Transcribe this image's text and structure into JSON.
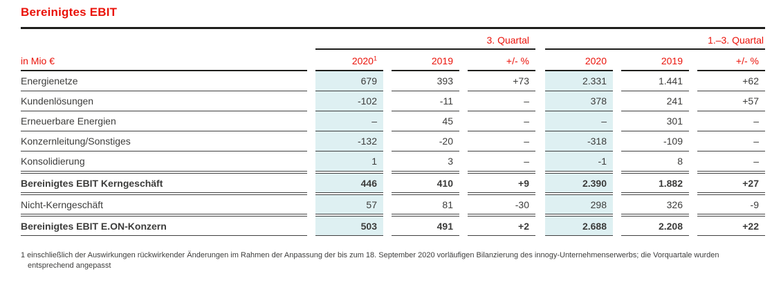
{
  "page": {
    "title": "Bereinigtes EBIT"
  },
  "colors": {
    "accent_red": "#ea1209",
    "highlight_cyan": "#def0f2",
    "rule_dark": "#1d1d1b",
    "rule_thin": "#3f3f3f",
    "text": "#3c3c3b"
  },
  "table": {
    "unit_label": "in Mio €",
    "groups": [
      {
        "label": "3. Quartal"
      },
      {
        "label": "1.–3. Quartal"
      }
    ],
    "columns": [
      {
        "label": "2020",
        "sup": "1"
      },
      {
        "label": "2019"
      },
      {
        "label": "+/- %"
      },
      {
        "label": "2020"
      },
      {
        "label": "2019"
      },
      {
        "label": "+/- %"
      }
    ],
    "rows": [
      {
        "label": "Energienetze",
        "bold": false,
        "values": [
          "679",
          "393",
          "+73",
          "2.331",
          "1.441",
          "+62"
        ]
      },
      {
        "label": "Kundenlösungen",
        "bold": false,
        "values": [
          "-102",
          "-11",
          "–",
          "378",
          "241",
          "+57"
        ]
      },
      {
        "label": "Erneuerbare Energien",
        "bold": false,
        "values": [
          "–",
          "45",
          "–",
          "–",
          "301",
          "–"
        ]
      },
      {
        "label": "Konzernleitung/Sonstiges",
        "bold": false,
        "values": [
          "-132",
          "-20",
          "–",
          "-318",
          "-109",
          "–"
        ]
      },
      {
        "label": "Konsolidierung",
        "bold": false,
        "values": [
          "1",
          "3",
          "–",
          "-1",
          "8",
          "–"
        ]
      },
      {
        "label": "Bereinigtes EBIT Kerngeschäft",
        "bold": true,
        "values": [
          "446",
          "410",
          "+9",
          "2.390",
          "1.882",
          "+27"
        ]
      },
      {
        "label": "Nicht-Kerngeschäft",
        "bold": false,
        "values": [
          "57",
          "81",
          "-30",
          "298",
          "326",
          "-9"
        ]
      },
      {
        "label": "Bereinigtes EBIT E.ON-Konzern",
        "bold": true,
        "values": [
          "503",
          "491",
          "+2",
          "2.688",
          "2.208",
          "+22"
        ]
      }
    ]
  },
  "footnote": "1 einschließlich der Auswirkungen rückwirkender Änderungen im Rahmen der Anpassung der bis zum 18. September 2020 vorläufigen Bilanzierung des innogy-Unternehmenserwerbs; die Vorquartale wurden entsprechend angepasst"
}
